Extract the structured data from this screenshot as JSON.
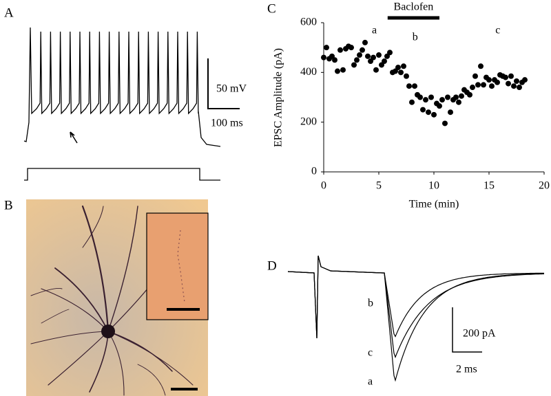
{
  "panels": [
    "A",
    "B",
    "C",
    "D"
  ],
  "scale_bars": {
    "voltage": "50 mV",
    "time_a": "100 ms",
    "current": "200 pA",
    "time_d": "2 ms"
  },
  "trace_labels": [
    "b",
    "c",
    "a"
  ],
  "chart_data": {
    "type": "scatter",
    "x_label": "Time (min)",
    "y_label": "EPSC Amplitude (pA)",
    "xlim": [
      0,
      20
    ],
    "ylim": [
      0,
      600
    ],
    "xticks": [
      0,
      5,
      10,
      15,
      20
    ],
    "yticks": [
      0,
      200,
      400,
      600
    ],
    "color": "#000000",
    "x": [
      0,
      0.25,
      0.5,
      0.75,
      1,
      1.25,
      1.5,
      1.75,
      2,
      2.25,
      2.5,
      2.75,
      3,
      3.25,
      3.5,
      3.75,
      4,
      4.25,
      4.5,
      4.75,
      5,
      5.25,
      5.5,
      5.75,
      6,
      6.25,
      6.5,
      6.75,
      7,
      7.25,
      7.5,
      7.75,
      8,
      8.25,
      8.5,
      8.75,
      9,
      9.25,
      9.5,
      9.75,
      10,
      10.25,
      10.5,
      10.75,
      11,
      11.25,
      11.5,
      11.75,
      12,
      12.25,
      12.5,
      12.75,
      13,
      13.25,
      13.5,
      13.75,
      14,
      14.25,
      14.5,
      14.75,
      15,
      15.25,
      15.5,
      15.75,
      16,
      16.25,
      16.5,
      16.75,
      17,
      17.25,
      17.5,
      17.75,
      18,
      18.25
    ],
    "values": [
      460,
      500,
      455,
      465,
      450,
      405,
      490,
      410,
      495,
      505,
      500,
      430,
      450,
      470,
      490,
      520,
      465,
      445,
      460,
      410,
      470,
      430,
      445,
      465,
      480,
      400,
      405,
      420,
      400,
      425,
      385,
      345,
      280,
      345,
      310,
      300,
      250,
      290,
      240,
      300,
      230,
      275,
      265,
      290,
      195,
      300,
      240,
      290,
      300,
      280,
      305,
      330,
      320,
      310,
      340,
      385,
      350,
      425,
      350,
      380,
      370,
      345,
      370,
      360,
      390,
      385,
      380,
      355,
      385,
      345,
      365,
      340,
      360,
      370
    ],
    "annotations": [
      {
        "text": "Baclofen",
        "x": [
          5.8,
          10.5
        ]
      },
      {
        "text": "a",
        "x": 4.6
      },
      {
        "text": "b",
        "x": 8.3
      },
      {
        "text": "c",
        "x": 15.8
      }
    ]
  }
}
